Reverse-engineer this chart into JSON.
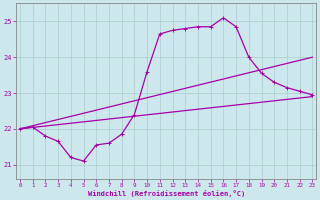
{
  "xlabel": "Windchill (Refroidissement éolien,°C)",
  "background_color": "#cce8ed",
  "grid_color": "#aacccc",
  "line_color": "#aa00aa",
  "x_ticks": [
    0,
    1,
    2,
    3,
    4,
    5,
    6,
    7,
    8,
    9,
    10,
    11,
    12,
    13,
    14,
    15,
    16,
    17,
    18,
    19,
    20,
    21,
    22,
    23
  ],
  "y_ticks": [
    21,
    22,
    23,
    24,
    25
  ],
  "ylim": [
    20.6,
    25.5
  ],
  "xlim": [
    -0.3,
    23.3
  ],
  "series1_x": [
    0,
    23
  ],
  "series1_y": [
    22.0,
    22.9
  ],
  "series2_x": [
    0,
    23
  ],
  "series2_y": [
    22.0,
    24.0
  ],
  "series3_x": [
    0,
    1,
    2,
    3,
    4,
    5,
    6,
    7,
    8,
    9,
    10,
    11,
    12,
    13,
    14,
    15,
    16,
    17,
    18,
    19,
    20,
    21,
    22,
    23
  ],
  "series3_y": [
    22.0,
    22.05,
    21.8,
    21.65,
    21.2,
    21.1,
    21.55,
    21.6,
    21.85,
    22.4,
    23.6,
    24.65,
    24.75,
    24.8,
    24.85,
    24.85,
    25.1,
    24.85,
    24.0,
    23.55,
    23.3,
    23.15,
    23.05,
    22.95
  ]
}
